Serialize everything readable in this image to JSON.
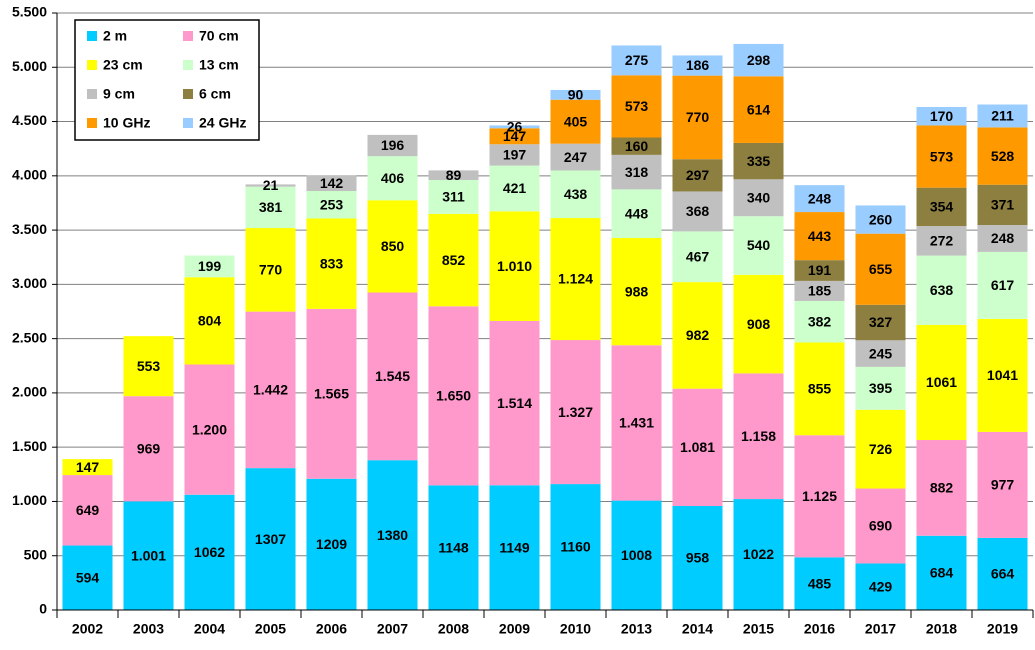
{
  "chart_data": {
    "type": "stacked_bar",
    "categories": [
      "2002",
      "2003",
      "2004",
      "2005",
      "2006",
      "2007",
      "2008",
      "2009",
      "2010",
      "2013",
      "2014",
      "2015",
      "2016",
      "2017",
      "2018",
      "2019"
    ],
    "series": [
      {
        "name": "2 m",
        "color": "#00ccff",
        "values": [
          594,
          1001,
          1062,
          1307,
          1209,
          1380,
          1148,
          1149,
          1160,
          1008,
          958,
          1022,
          485,
          429,
          684,
          664
        ],
        "value_labels": [
          "594",
          "1.001",
          "1062",
          "1307",
          "1209",
          "1380",
          "1148",
          "1149",
          "1160",
          "1008",
          "958",
          "1022",
          "485",
          "429",
          "684",
          "664"
        ]
      },
      {
        "name": "70 cm",
        "color": "#ff99cc",
        "values": [
          649,
          969,
          1200,
          1442,
          1565,
          1545,
          1650,
          1514,
          1327,
          1431,
          1081,
          1158,
          1125,
          690,
          882,
          977
        ],
        "value_labels": [
          "649",
          "969",
          "1.200",
          "1.442",
          "1.565",
          "1.545",
          "1.650",
          "1.514",
          "1.327",
          "1.431",
          "1.081",
          "1.158",
          "1.125",
          "690",
          "882",
          "977"
        ]
      },
      {
        "name": "23 cm",
        "color": "#ffff00",
        "values": [
          147,
          553,
          804,
          770,
          833,
          850,
          852,
          1010,
          1124,
          988,
          982,
          908,
          855,
          726,
          1061,
          1041
        ],
        "value_labels": [
          "147",
          "553",
          "804",
          "770",
          "833",
          "850",
          "852",
          "1.010",
          "1.124",
          "988",
          "982",
          "908",
          "855",
          "726",
          "1061",
          "1041"
        ]
      },
      {
        "name": "13 cm",
        "color": "#ccffcc",
        "values": [
          null,
          null,
          199,
          381,
          253,
          406,
          311,
          421,
          438,
          448,
          467,
          540,
          382,
          395,
          638,
          617
        ]
      },
      {
        "name": "9 cm",
        "color": "#c0c0c0",
        "values": [
          null,
          null,
          null,
          21,
          142,
          196,
          89,
          197,
          247,
          318,
          368,
          340,
          185,
          245,
          272,
          248
        ]
      },
      {
        "name": "6 cm",
        "color": "#8c7f3f",
        "values": [
          null,
          null,
          null,
          null,
          null,
          null,
          null,
          null,
          null,
          160,
          297,
          335,
          191,
          327,
          354,
          371
        ]
      },
      {
        "name": "10 GHz",
        "color": "#ff9900",
        "values": [
          null,
          null,
          null,
          null,
          null,
          null,
          null,
          147,
          405,
          573,
          770,
          614,
          443,
          655,
          573,
          528
        ]
      },
      {
        "name": "24 GHz",
        "color": "#99ccff",
        "values": [
          null,
          null,
          null,
          null,
          null,
          null,
          null,
          26,
          90,
          275,
          186,
          298,
          248,
          260,
          170,
          211
        ]
      }
    ],
    "ylim": [
      0,
      5500
    ],
    "yticks": [
      0,
      500,
      {
        "value": 1000,
        "label": "1.000"
      },
      {
        "value": 1500,
        "label": "1.500"
      },
      {
        "value": 2000,
        "label": "2.000"
      },
      {
        "value": 2500,
        "label": "2.500"
      },
      {
        "value": 3000,
        "label": "3.000"
      },
      {
        "value": 3500,
        "label": "3.500"
      },
      {
        "value": 4000,
        "label": "4.000"
      },
      {
        "value": 4500,
        "label": "4.500"
      },
      {
        "value": 5000,
        "label": "5.000"
      },
      {
        "value": 5500,
        "label": "5.500"
      }
    ],
    "grid": true
  }
}
